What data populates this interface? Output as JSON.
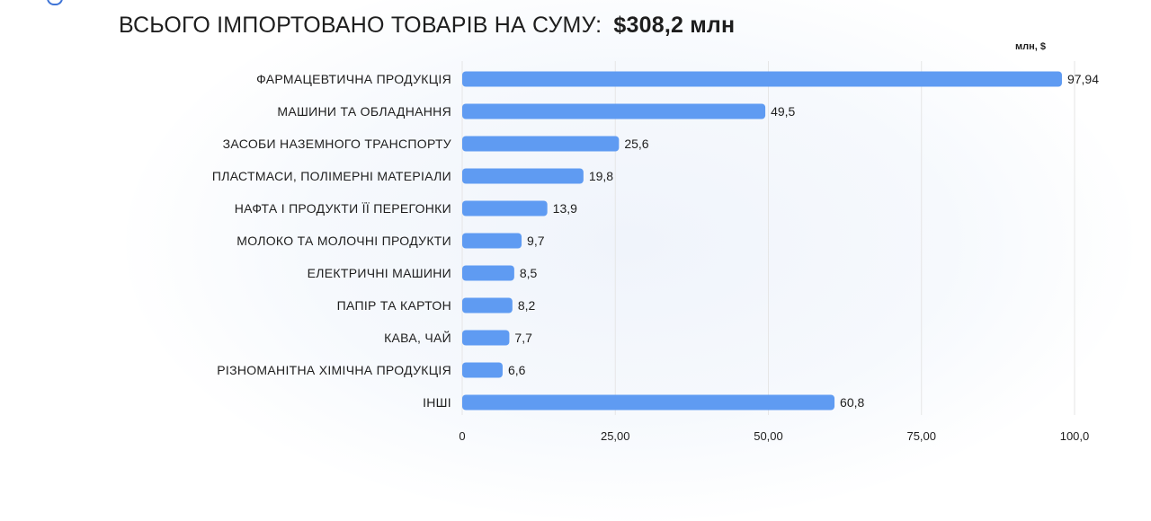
{
  "header": {
    "title": "ВСЬОГО ІМПОРТОВАНО ТОВАРІВ НА СУМУ:",
    "total": "$308,2 млн"
  },
  "chart_data": {
    "type": "bar",
    "orientation": "horizontal",
    "unit_label": "млн, $",
    "categories": [
      "ФАРМАЦЕВТИЧНА ПРОДУКЦІЯ",
      "МАШИНИ ТА ОБЛАДНАННЯ",
      "ЗАСОБИ НАЗЕМНОГО ТРАНСПОРТУ",
      "ПЛАСТМАСИ, ПОЛІМЕРНІ МАТЕРІАЛИ",
      "НАФТА І ПРОДУКТИ ЇЇ ПЕРЕГОНКИ",
      "МОЛОКО ТА МОЛОЧНІ ПРОДУКТИ",
      "ЕЛЕКТРИЧНІ МАШИНИ",
      "ПАПІР ТА КАРТОН",
      "КАВА, ЧАЙ",
      "РІЗНОМАНІТНА ХІМІЧНА ПРОДУКЦІЯ",
      "ІНШІ"
    ],
    "values": [
      97.94,
      49.5,
      25.6,
      19.8,
      13.9,
      9.7,
      8.5,
      8.2,
      7.7,
      6.6,
      60.8
    ],
    "value_labels": [
      "97,94",
      "49,5",
      "25,6",
      "19,8",
      "13,9",
      "9,7",
      "8,5",
      "8,2",
      "7,7",
      "6,6",
      "60,8"
    ],
    "xlim": [
      0,
      100
    ],
    "xticks": [
      0,
      25,
      50,
      75,
      100
    ],
    "xtick_labels": [
      "0",
      "25,00",
      "50,00",
      "75,00",
      "100,0"
    ],
    "grid": true,
    "bar_color": "#5f9bf2",
    "grid_color": "#e6e6e6"
  }
}
